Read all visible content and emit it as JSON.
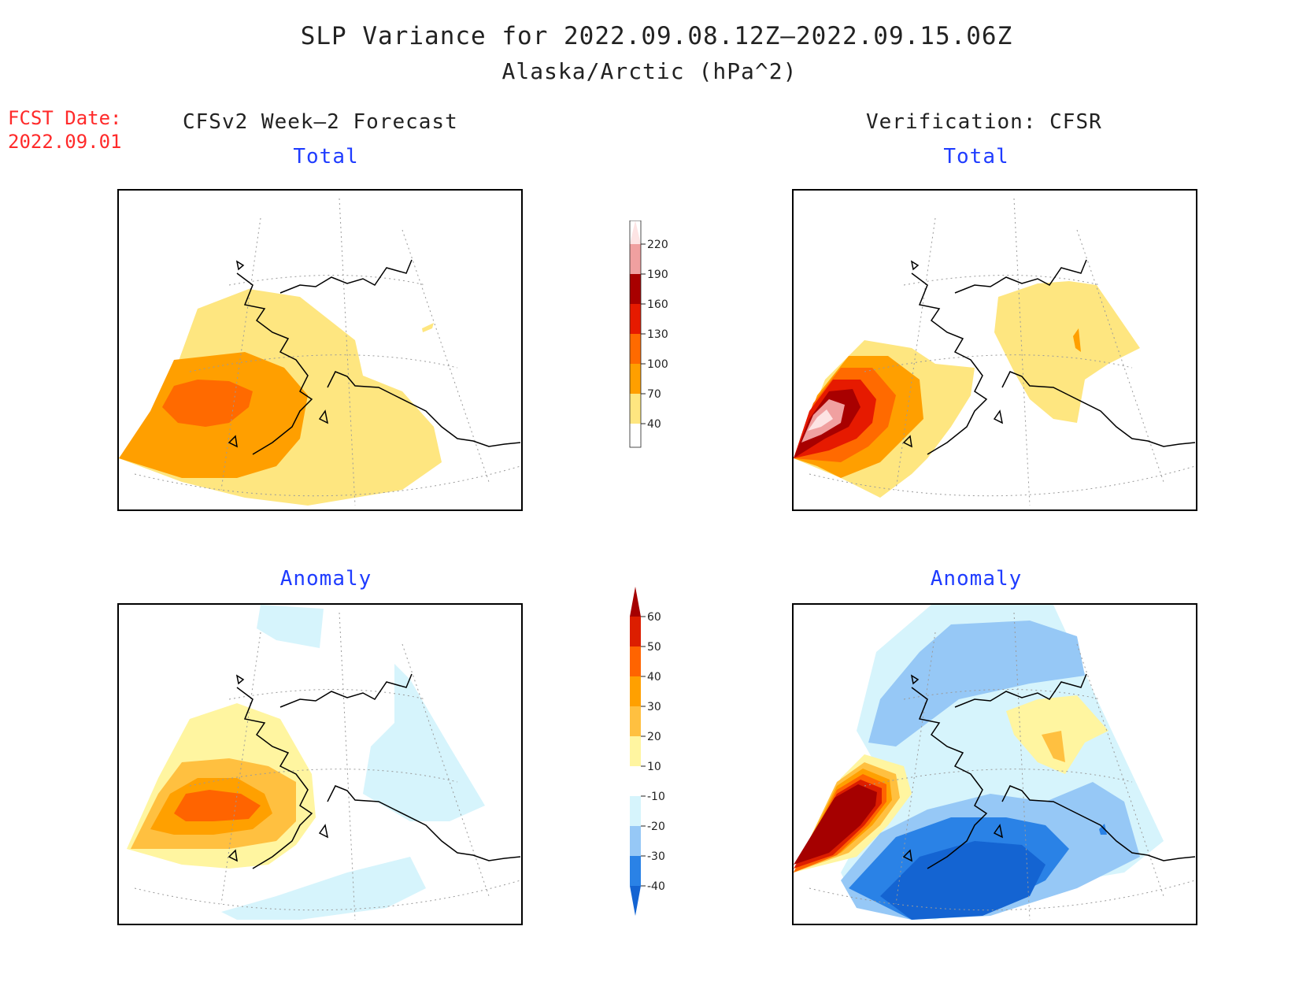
{
  "title": "SLP Variance for 2022.09.08.12Z—2022.09.15.06Z",
  "subtitle": "Alaska/Arctic (hPa^2)",
  "fcst_date_label": "FCST Date:",
  "fcst_date_value": "2022.09.01",
  "left_header": "CFSv2 Week—2 Forecast",
  "right_header": "Verification: CFSR",
  "panels": {
    "top_left": "Total",
    "top_right": "Total",
    "bottom_left": "Anomaly",
    "bottom_right": "Anomaly"
  },
  "total_colorbar": {
    "levels": [
      "40",
      "70",
      "100",
      "130",
      "160",
      "190",
      "220"
    ],
    "colors": [
      "#fee680",
      "#ff9f00",
      "#ff6a00",
      "#e61a00",
      "#a80000",
      "#f0a0a0",
      "#fde4e4"
    ]
  },
  "anomaly_colorbar": {
    "levels": [
      "-40",
      "-30",
      "-20",
      "-10",
      "10",
      "20",
      "30",
      "40",
      "50",
      "60"
    ],
    "colors": [
      "#1464d2",
      "#2a82e6",
      "#96c8f6",
      "#d6f4fc",
      "#ffffff",
      "#fff5a0",
      "#ffc040",
      "#ffa000",
      "#ff6400",
      "#dc1e00",
      "#a50000"
    ]
  },
  "colors": {
    "title_text": "#222222",
    "fcst_text": "#ff2a2a",
    "panel_subtitle": "#1f3cff"
  }
}
